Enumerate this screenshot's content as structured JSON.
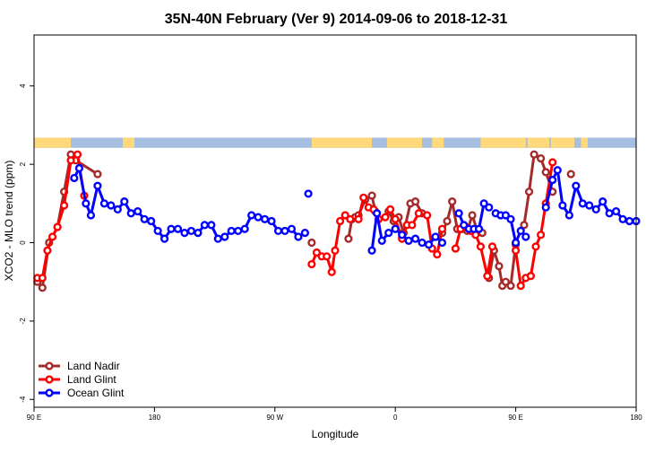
{
  "chart_data": {
    "type": "line",
    "title": "35N-40N February (Ver 9)   2014-09-06 to 2018-12-31",
    "xlabel": "Longitude",
    "ylabel": "XCO2 - MLO trend (ppm)",
    "xlim": [
      90,
      450
    ],
    "ylim": [
      -4.2,
      5.3
    ],
    "x_ticks": [
      {
        "value": 90,
        "label": "90 E"
      },
      {
        "value": 162,
        "label": "180"
      },
      {
        "value": 234,
        "label": "90 W"
      },
      {
        "value": 306,
        "label": "0"
      },
      {
        "value": 378,
        "label": "90 E"
      },
      {
        "value": 450,
        "label": "180"
      }
    ],
    "y_ticks": [
      {
        "value": -4,
        "label": "-4"
      },
      {
        "value": -2,
        "label": "-2"
      },
      {
        "value": 0,
        "label": "0"
      },
      {
        "value": 2,
        "label": "2"
      },
      {
        "value": 4,
        "label": "4"
      }
    ],
    "grid": false,
    "legend_position": "bottom-left",
    "land_sea_band": {
      "y_range": [
        2.42,
        2.68
      ],
      "land_color": "#ffd97a",
      "sea_color": "#a6bedf",
      "land_segments": [
        [
          90,
          112
        ],
        [
          143,
          150
        ],
        [
          256,
          292
        ],
        [
          301,
          322
        ],
        [
          328,
          335
        ],
        [
          357,
          384
        ],
        [
          385,
          398
        ],
        [
          399,
          413
        ],
        [
          417,
          421
        ]
      ]
    },
    "series": [
      {
        "name": "Land Nadir",
        "color": "#a52a2a",
        "segments": [
          {
            "x": [
              92,
              95,
              99,
              104,
              108,
              112,
              115,
              128
            ],
            "y": [
              -1.0,
              -1.15,
              0.0,
              0.4,
              1.3,
              2.25,
              2.1,
              1.75
            ]
          },
          {
            "x": [
              256
            ],
            "y": [
              0.0
            ]
          },
          {
            "x": [
              278,
              280,
              282,
              284,
              288,
              292,
              294
            ],
            "y": [
              0.1,
              0.6,
              0.65,
              0.7,
              1.1,
              1.2,
              0.8
            ]
          },
          {
            "x": [
              302,
              305,
              308,
              311,
              315,
              318,
              322
            ],
            "y": [
              0.8,
              0.55,
              0.65,
              0.25,
              1.0,
              1.05,
              0.75
            ]
          },
          {
            "x": [
              334,
              337,
              340,
              343,
              346,
              349,
              352,
              355,
              358
            ],
            "y": [
              0.25,
              0.55,
              1.05,
              0.35,
              0.35,
              0.3,
              0.7,
              0.3,
              0.25
            ]
          },
          {
            "x": [
              362,
              365,
              368,
              370,
              372,
              375,
              378
            ],
            "y": [
              -0.9,
              -0.2,
              -0.6,
              -1.1,
              -1.0,
              -1.1,
              -0.05
            ]
          },
          {
            "x": [
              383,
              386,
              389,
              393,
              396,
              400
            ],
            "y": [
              0.45,
              1.3,
              2.25,
              2.15,
              1.8,
              1.3
            ]
          },
          {
            "x": [
              411
            ],
            "y": [
              1.75
            ]
          }
        ]
      },
      {
        "name": "Land Glint",
        "color": "#ff0000",
        "segments": [
          {
            "x": [
              92,
              95,
              98,
              101,
              104,
              108,
              112,
              116,
              120
            ],
            "y": [
              -0.9,
              -0.9,
              -0.2,
              0.15,
              0.4,
              0.95,
              2.1,
              2.25,
              1.2
            ]
          },
          {
            "x": [
              256,
              259,
              262,
              265,
              268,
              270,
              273,
              276,
              279,
              284,
              287,
              290,
              293,
              296
            ],
            "y": [
              -0.55,
              -0.25,
              -0.35,
              -0.35,
              -0.75,
              -0.2,
              0.55,
              0.7,
              0.6,
              0.6,
              1.15,
              0.9,
              0.85,
              0.6
            ]
          },
          {
            "x": [
              300,
              303,
              306,
              310,
              313,
              316,
              320,
              325,
              328,
              331,
              334
            ],
            "y": [
              0.65,
              0.85,
              0.6,
              0.1,
              0.45,
              0.45,
              0.75,
              0.7,
              -0.15,
              -0.3,
              0.35
            ]
          },
          {
            "x": [
              342,
              345,
              348,
              351,
              354,
              357,
              361,
              364
            ],
            "y": [
              -0.15,
              0.35,
              0.4,
              0.3,
              0.2,
              -0.1,
              -0.85,
              -0.1
            ]
          },
          {
            "x": [
              378,
              381,
              384,
              387,
              390,
              393,
              396,
              400
            ],
            "y": [
              -0.2,
              -1.1,
              -0.9,
              -0.85,
              -0.1,
              0.2,
              1.0,
              2.05
            ]
          }
        ]
      },
      {
        "name": "Ocean Glint",
        "color": "#0000ff",
        "segments": [
          {
            "x": [
              114,
              117,
              121,
              124,
              128,
              132,
              136,
              140,
              144,
              148,
              152,
              156,
              160,
              164,
              168,
              172,
              176,
              180,
              184,
              188,
              192,
              196,
              200,
              204,
              208,
              212,
              216,
              220,
              224,
              228,
              232,
              236,
              240,
              244,
              248,
              252
            ],
            "y": [
              1.65,
              1.9,
              1.0,
              0.7,
              1.45,
              1.0,
              0.95,
              0.85,
              1.05,
              0.75,
              0.8,
              0.6,
              0.55,
              0.3,
              0.1,
              0.35,
              0.35,
              0.25,
              0.3,
              0.25,
              0.45,
              0.45,
              0.1,
              0.15,
              0.3,
              0.3,
              0.35,
              0.7,
              0.65,
              0.6,
              0.55,
              0.3,
              0.3,
              0.35,
              0.15,
              0.25
            ]
          },
          {
            "x": [
              292,
              295,
              298,
              302,
              306,
              310,
              314,
              318,
              322,
              326,
              330,
              334
            ],
            "y": [
              -0.2,
              0.75,
              0.05,
              0.25,
              0.35,
              0.2,
              0.05,
              0.1,
              0.0,
              -0.05,
              0.15,
              0.0
            ]
          },
          {
            "x": [
              344,
              347,
              350,
              353,
              356,
              359,
              362
            ],
            "y": [
              0.75,
              0.45,
              0.35,
              0.35,
              0.35,
              1.0,
              0.9
            ]
          },
          {
            "x": [
              366,
              369,
              372,
              375,
              378,
              381,
              384
            ],
            "y": [
              0.75,
              0.7,
              0.7,
              0.6,
              0.0,
              0.3,
              0.15
            ]
          },
          {
            "x": [
              396,
              400,
              403,
              406,
              410,
              414,
              418,
              422,
              426,
              430,
              434,
              438,
              442,
              446,
              450
            ],
            "y": [
              0.9,
              1.6,
              1.85,
              0.95,
              0.7,
              1.45,
              1.0,
              0.95,
              0.85,
              1.05,
              0.75,
              0.8,
              0.6,
              0.55,
              0.55
            ]
          },
          {
            "x": [
              254
            ],
            "y": [
              1.25
            ]
          }
        ]
      }
    ]
  }
}
